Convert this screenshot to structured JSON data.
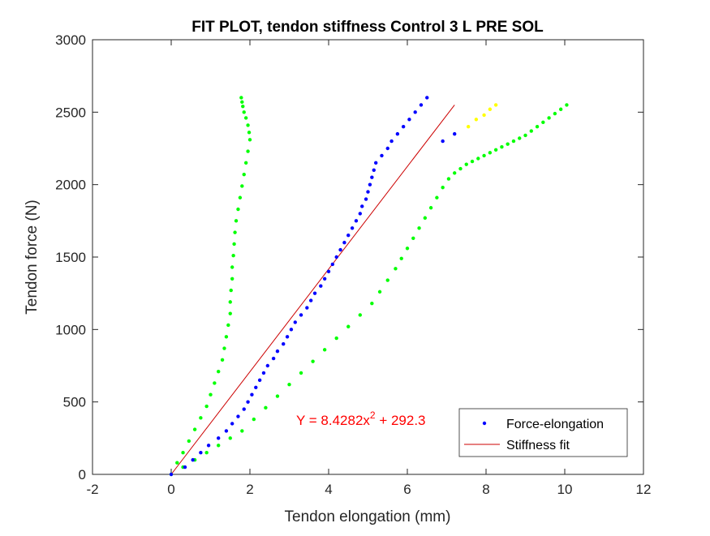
{
  "chart_data": {
    "type": "scatter",
    "title": "FIT PLOT, tendon stiffness Control 3 L PRE SOL",
    "xlabel": "Tendon elongation (mm)",
    "ylabel": "Tendon force (N)",
    "xlim": [
      -2,
      12
    ],
    "ylim": [
      0,
      3000
    ],
    "xticks": [
      -2,
      0,
      2,
      4,
      6,
      8,
      10,
      12
    ],
    "yticks": [
      0,
      500,
      1000,
      1500,
      2000,
      2500,
      3000
    ],
    "grid": false,
    "legend_position": "bottom-right",
    "annotation": {
      "text": "Y = 8.4282x",
      "exponent": "2",
      "suffix": " + 292.3",
      "color": "#ff0000",
      "x": 3.2,
      "y": 350
    },
    "series": [
      {
        "name": "Force-elongation",
        "kind": "points",
        "color": "#0000ff",
        "x": [
          0.0,
          0.35,
          0.55,
          0.75,
          0.95,
          1.2,
          1.4,
          1.55,
          1.7,
          1.85,
          1.95,
          2.05,
          2.15,
          2.25,
          2.35,
          2.45,
          2.6,
          2.7,
          2.85,
          2.95,
          3.05,
          3.15,
          3.3,
          3.45,
          3.55,
          3.65,
          3.8,
          3.9,
          4.0,
          4.1,
          4.2,
          4.3,
          4.4,
          4.5,
          4.6,
          4.7,
          4.8,
          4.85,
          4.95,
          5.0,
          5.05,
          5.1,
          5.15,
          5.2,
          5.35,
          5.5,
          5.6,
          5.75,
          5.9,
          6.05,
          6.2,
          6.35,
          6.5,
          6.9,
          7.2
        ],
        "y": [
          0,
          50,
          100,
          150,
          200,
          250,
          300,
          350,
          400,
          450,
          500,
          550,
          600,
          650,
          700,
          750,
          800,
          850,
          900,
          950,
          1000,
          1050,
          1100,
          1150,
          1200,
          1250,
          1300,
          1350,
          1400,
          1450,
          1500,
          1550,
          1600,
          1650,
          1700,
          1750,
          1800,
          1850,
          1900,
          1950,
          2000,
          2050,
          2100,
          2150,
          2200,
          2250,
          2300,
          2350,
          2400,
          2450,
          2500,
          2550,
          2600,
          2300,
          2350
        ]
      },
      {
        "name": "Stiffness fit",
        "kind": "line",
        "color": "#cc0000",
        "x": [
          0.0,
          7.2
        ],
        "y": [
          0,
          2550
        ]
      },
      {
        "name": "",
        "kind": "points",
        "color": "#00ff00",
        "x": [
          0.0,
          0.15,
          0.3,
          0.45,
          0.6,
          0.75,
          0.9,
          1.0,
          1.1,
          1.2,
          1.3,
          1.35,
          1.4,
          1.45,
          1.5,
          1.5,
          1.52,
          1.55,
          1.55,
          1.58,
          1.6,
          1.62,
          1.65,
          1.7,
          1.75,
          1.8,
          1.85,
          1.9,
          1.95,
          2.0,
          1.98,
          1.95,
          1.9,
          1.85,
          1.82,
          1.8,
          1.78
        ],
        "y": [
          0,
          80,
          150,
          230,
          310,
          390,
          470,
          550,
          630,
          710,
          790,
          870,
          950,
          1030,
          1110,
          1190,
          1270,
          1350,
          1430,
          1510,
          1590,
          1670,
          1750,
          1830,
          1910,
          1990,
          2070,
          2150,
          2230,
          2310,
          2360,
          2410,
          2460,
          2500,
          2540,
          2570,
          2600
        ]
      },
      {
        "name": "",
        "kind": "points",
        "color": "#00ff00",
        "x": [
          0.3,
          0.6,
          0.9,
          1.2,
          1.5,
          1.8,
          2.1,
          2.4,
          2.7,
          3.0,
          3.3,
          3.6,
          3.9,
          4.2,
          4.5,
          4.8,
          5.1,
          5.3,
          5.5,
          5.7,
          5.85,
          6.0,
          6.15,
          6.3,
          6.45,
          6.6,
          6.75,
          6.9,
          7.05,
          7.2,
          7.35,
          7.5,
          7.65,
          7.8,
          7.95,
          8.1,
          8.25,
          8.4,
          8.55,
          8.7,
          8.85,
          9.0,
          9.15,
          9.3,
          9.45,
          9.6,
          9.75,
          9.9,
          10.05
        ],
        "y": [
          50,
          100,
          150,
          200,
          250,
          300,
          380,
          460,
          540,
          620,
          700,
          780,
          860,
          940,
          1020,
          1100,
          1180,
          1260,
          1340,
          1420,
          1490,
          1560,
          1630,
          1700,
          1770,
          1840,
          1910,
          1980,
          2040,
          2080,
          2110,
          2140,
          2160,
          2180,
          2200,
          2220,
          2240,
          2260,
          2280,
          2300,
          2320,
          2340,
          2370,
          2400,
          2430,
          2460,
          2490,
          2520,
          2550
        ]
      },
      {
        "name": "",
        "kind": "points",
        "color": "#ffff00",
        "x": [
          7.55,
          7.75,
          7.95,
          8.1,
          8.25
        ],
        "y": [
          2400,
          2450,
          2480,
          2520,
          2550
        ]
      }
    ]
  }
}
